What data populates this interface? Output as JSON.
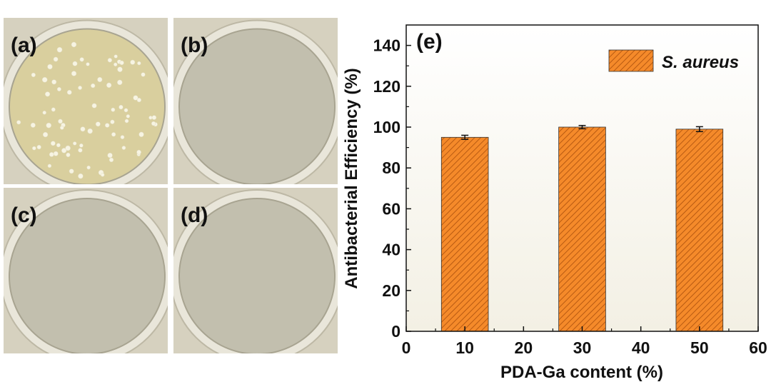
{
  "panels": [
    {
      "label": "(a)",
      "colonies": true
    },
    {
      "label": "(b)",
      "colonies": false
    },
    {
      "label": "(c)",
      "colonies": false
    },
    {
      "label": "(d)",
      "colonies": false
    }
  ],
  "colors": {
    "bar_fill": "#f58a2a",
    "bar_hatch": "#b85a12",
    "plot_bg_top": "#ffffff",
    "plot_bg_bottom": "#f3f0e4"
  },
  "chart_data": {
    "type": "bar",
    "panel_label": "(e)",
    "x": [
      10,
      30,
      50
    ],
    "series": [
      {
        "name": "S. aureus",
        "values": [
          95,
          100,
          99
        ],
        "errors": [
          1.0,
          0.8,
          1.2
        ]
      }
    ],
    "xlabel": "PDA-Ga content (%)",
    "ylabel": "Antibacterial Efficiency (%)",
    "xlim": [
      0,
      60
    ],
    "ylim": [
      0,
      150
    ],
    "xticks": [
      "0",
      "10",
      "20",
      "30",
      "40",
      "50",
      "60"
    ],
    "yticks": [
      "0",
      "20",
      "40",
      "60",
      "80",
      "100",
      "120",
      "140"
    ],
    "bar_width": 8,
    "legend_position": "top-right",
    "grid": false
  }
}
